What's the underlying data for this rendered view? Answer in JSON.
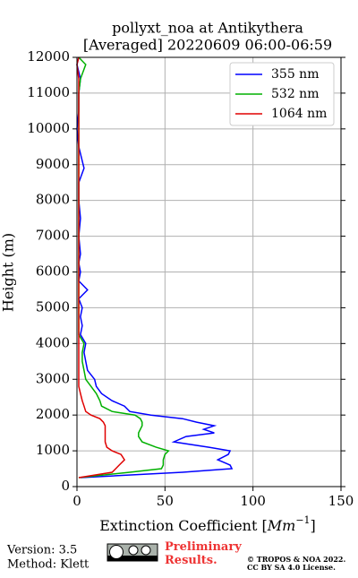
{
  "chart_data": {
    "type": "profile",
    "title": "pollyxt_noa at Antikythera",
    "subtitle": "[Averaged] 20220609 06:00-06:59",
    "xlabel": {
      "prefix": "Extinction Coefficient [",
      "unit": "Mm",
      "exponent": "−1",
      "suffix": "]"
    },
    "ylabel": "Height (m)",
    "heights": [
      250,
      400,
      500,
      600,
      750,
      900,
      1000,
      1100,
      1250,
      1400,
      1500,
      1600,
      1700,
      1800,
      1900,
      2000,
      2100,
      2250,
      2400,
      2600,
      2800,
      3000,
      3250,
      3500,
      3750,
      4000,
      4250,
      4500,
      4750,
      5000,
      5250,
      5500,
      5750,
      6000,
      6250,
      6500,
      7000,
      7500,
      8000,
      8500,
      8900,
      9500,
      10000,
      10500,
      11000,
      11400,
      11800,
      12000
    ],
    "series": [
      {
        "name": "355 nm",
        "color": "#0000ff",
        "values": [
          2,
          60,
          88,
          87,
          80,
          86,
          87,
          75,
          55,
          62,
          78,
          72,
          78,
          68,
          60,
          42,
          30,
          27,
          20,
          14,
          11,
          10,
          6,
          5,
          4,
          5,
          2,
          3,
          2,
          3,
          1,
          6,
          1,
          2,
          1,
          2,
          1,
          2,
          1,
          1,
          4,
          1,
          0,
          1,
          1,
          2,
          0,
          1
        ]
      },
      {
        "name": "532 nm",
        "color": "#00b000",
        "values": [
          1,
          30,
          48,
          49,
          49,
          50,
          52,
          45,
          37,
          35,
          35,
          36,
          37,
          37,
          36,
          33,
          20,
          14,
          13,
          11,
          8,
          5,
          4,
          3,
          3,
          4,
          1,
          1,
          1,
          1,
          1,
          1,
          1,
          1,
          1,
          1,
          1,
          1,
          1,
          1,
          1,
          1,
          1,
          1,
          1,
          2,
          5,
          1
        ]
      },
      {
        "name": "1064 nm",
        "color": "#e00000",
        "values": [
          1,
          20,
          22,
          24,
          27,
          25,
          20,
          17,
          16,
          16,
          16,
          16,
          16,
          15,
          13,
          8,
          5,
          4,
          3,
          2,
          1,
          1,
          1,
          1,
          1,
          1,
          1,
          1,
          1,
          1,
          1,
          1,
          1,
          1,
          1,
          1,
          1,
          1,
          1,
          1,
          1,
          1,
          1,
          1,
          1,
          1,
          0,
          1
        ]
      }
    ],
    "xlim": [
      0,
      150
    ],
    "xticks": [
      0,
      50,
      100,
      150
    ],
    "ylim": [
      0,
      12000
    ],
    "yticks": [
      0,
      1000,
      2000,
      3000,
      4000,
      5000,
      6000,
      7000,
      8000,
      9000,
      10000,
      11000,
      12000
    ],
    "grid": true,
    "legend": "upper right",
    "footer": {
      "version": "Version: 3.5",
      "method": "Method: Klett",
      "notice": "Preliminary Results.",
      "copyright": "© TROPOS & NOA 2022.",
      "license": "CC BY SA 4.0 License."
    }
  }
}
